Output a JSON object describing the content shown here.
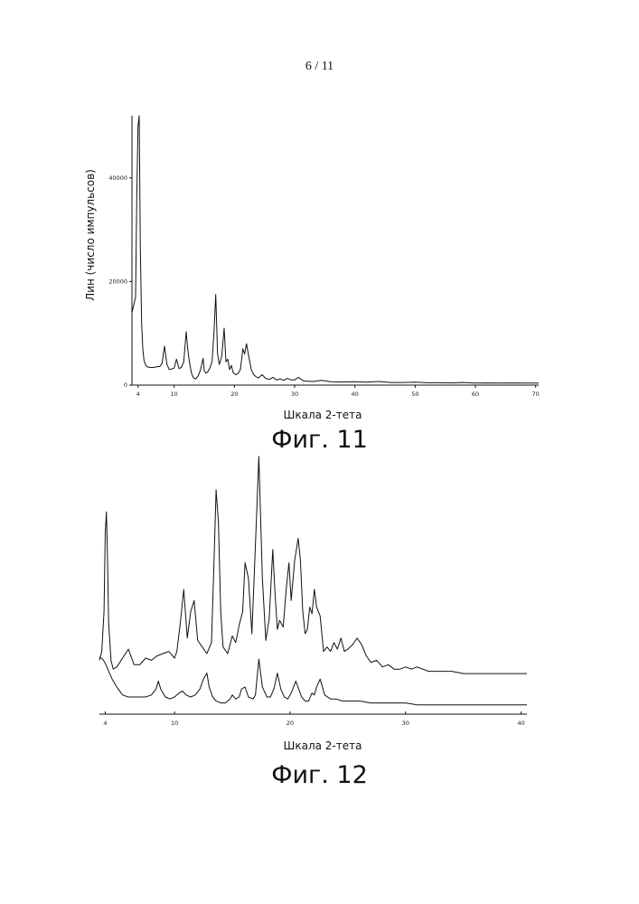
{
  "page_number": "6  / 11",
  "chart_data": [
    {
      "type": "line",
      "title": "",
      "caption": "Фиг. 11",
      "xlabel": "Шкала 2-тета",
      "ylabel": "Лин (число импульсов)",
      "xlim": [
        3,
        70.5
      ],
      "ylim": [
        0,
        52000
      ],
      "xticks": [
        4,
        10,
        20,
        30,
        40,
        50,
        60,
        70
      ],
      "yticks": [
        0,
        20000,
        40000
      ],
      "grid": false,
      "series": [
        {
          "x": [
            3.0,
            3.6,
            3.8,
            4.0,
            4.2,
            4.4,
            4.6,
            4.8,
            5.0,
            5.3,
            5.6,
            6.0,
            6.5,
            7.0,
            7.6,
            8.0,
            8.4,
            8.8,
            9.2,
            9.6,
            10.0,
            10.4,
            10.8,
            11.2,
            11.6,
            12.0,
            12.3,
            12.6,
            12.9,
            13.2,
            13.6,
            14.0,
            14.4,
            14.8,
            15.0,
            15.3,
            15.6,
            16.0,
            16.3,
            16.6,
            16.9,
            17.2,
            17.5,
            17.9,
            18.3,
            18.6,
            18.9,
            19.2,
            19.5,
            19.8,
            20.2,
            20.6,
            21.0,
            21.4,
            21.7,
            22.0,
            22.4,
            22.8,
            23.2,
            23.6,
            24.0,
            24.6,
            25.2,
            25.8,
            26.4,
            27.0,
            27.6,
            28.2,
            28.8,
            29.4,
            30.0,
            30.6,
            31.5,
            33.0,
            34.5,
            36.0,
            38.0,
            40.0,
            42.0,
            44.0,
            46.0,
            48.0,
            50.0,
            52.0,
            54.0,
            56.0,
            58.0,
            60.0,
            62.0,
            64.0,
            66.0,
            68.0,
            70.0,
            70.5
          ],
          "y": [
            14000,
            17000,
            36000,
            50000,
            52000,
            26000,
            12000,
            7000,
            4800,
            3800,
            3500,
            3400,
            3400,
            3500,
            3600,
            4200,
            7500,
            4000,
            3000,
            3100,
            3300,
            5000,
            3200,
            3400,
            4500,
            10300,
            6500,
            4000,
            2200,
            1400,
            1200,
            1800,
            3000,
            5200,
            2800,
            2300,
            2600,
            3500,
            4600,
            10000,
            17500,
            6000,
            4000,
            5500,
            11000,
            4500,
            5000,
            3000,
            3800,
            2400,
            2000,
            2200,
            3000,
            7000,
            6000,
            8000,
            5500,
            3000,
            2000,
            1600,
            1400,
            2000,
            1300,
            1100,
            1500,
            1000,
            1200,
            900,
            1300,
            1000,
            1000,
            1500,
            800,
            700,
            900,
            650,
            600,
            650,
            550,
            700,
            500,
            500,
            550,
            450,
            450,
            420,
            500,
            400,
            420,
            380,
            420,
            400,
            380,
            380
          ]
        }
      ]
    },
    {
      "type": "line",
      "title": "",
      "caption": "Фиг. 12",
      "xlabel": "Шкала 2-тета",
      "ylabel": "",
      "xlim": [
        3.5,
        40.5
      ],
      "xticks": [
        4,
        10,
        20,
        30,
        40
      ],
      "yaxis": "none",
      "grid": false,
      "series": [
        {
          "x": [
            3.5,
            3.7,
            3.9,
            4.0,
            4.1,
            4.2,
            4.3,
            4.5,
            4.7,
            5.0,
            5.5,
            6.0,
            6.5,
            7.0,
            7.5,
            8.0,
            8.5,
            9.0,
            9.5,
            10.0,
            10.2,
            10.5,
            10.8,
            11.1,
            11.4,
            11.7,
            12.0,
            12.4,
            12.8,
            13.2,
            13.4,
            13.6,
            13.8,
            14.0,
            14.2,
            14.6,
            15.0,
            15.3,
            15.6,
            15.9,
            16.1,
            16.4,
            16.7,
            17.0,
            17.3,
            17.6,
            17.9,
            18.2,
            18.5,
            18.7,
            18.9,
            19.1,
            19.4,
            19.7,
            19.9,
            20.1,
            20.4,
            20.7,
            20.9,
            21.1,
            21.3,
            21.5,
            21.7,
            21.9,
            22.1,
            22.3,
            22.6,
            22.9,
            23.2,
            23.5,
            23.8,
            24.1,
            24.4,
            24.7,
            25.0,
            25.4,
            25.8,
            26.2,
            26.6,
            27.0,
            27.5,
            28.0,
            28.5,
            29.0,
            29.5,
            30.0,
            30.5,
            31.0,
            32.0,
            33.0,
            34.0,
            35.0,
            36.0,
            37.0,
            38.0,
            39.0,
            40.0,
            40.5
          ],
          "y": [
            8,
            12,
            30,
            65,
            75,
            55,
            25,
            8,
            4,
            5,
            9,
            13,
            6,
            6,
            9,
            8,
            10,
            11,
            12,
            9,
            12,
            25,
            40,
            18,
            30,
            35,
            17,
            14,
            11,
            16,
            50,
            85,
            70,
            30,
            14,
            11,
            19,
            16,
            24,
            30,
            52,
            45,
            20,
            60,
            100,
            45,
            17,
            27,
            58,
            38,
            22,
            26,
            23,
            42,
            52,
            35,
            53,
            63,
            53,
            30,
            20,
            22,
            32,
            29,
            40,
            32,
            28,
            12,
            14,
            12,
            16,
            13,
            18,
            12,
            13,
            15,
            18,
            15,
            10,
            7,
            8,
            5,
            6,
            4,
            4,
            5,
            4,
            5,
            3,
            3,
            3,
            2,
            2,
            2,
            2,
            2,
            2,
            2
          ]
        },
        {
          "x": [
            3.5,
            3.8,
            4.0,
            4.3,
            4.6,
            5.0,
            5.5,
            6.0,
            6.5,
            7.0,
            7.5,
            8.0,
            8.4,
            8.6,
            8.8,
            9.2,
            9.6,
            10.0,
            10.4,
            10.7,
            11.0,
            11.4,
            11.8,
            12.2,
            12.5,
            12.8,
            13.0,
            13.3,
            13.6,
            14.0,
            14.4,
            14.8,
            15.0,
            15.3,
            15.6,
            15.8,
            16.1,
            16.4,
            16.8,
            17.0,
            17.3,
            17.6,
            18.0,
            18.3,
            18.6,
            18.9,
            19.2,
            19.5,
            19.8,
            20.1,
            20.5,
            21.0,
            21.3,
            21.6,
            21.9,
            22.1,
            22.3,
            22.6,
            23.0,
            23.5,
            24.0,
            24.5,
            25.0,
            25.5,
            26.0,
            27.0,
            28.0,
            29.0,
            30.0,
            31.0,
            32.0,
            33.0,
            34.0,
            35.0,
            36.0,
            37.0,
            38.0,
            39.0,
            40.0,
            40.5
          ],
          "y": [
            25,
            24,
            22,
            18,
            14,
            10,
            6,
            5,
            5,
            5,
            5,
            6,
            9,
            13,
            9,
            5,
            4,
            5,
            7,
            8,
            6,
            5,
            6,
            9,
            14,
            17,
            10,
            5,
            3,
            2,
            2,
            4,
            6,
            4,
            5,
            9,
            10,
            5,
            4,
            6,
            24,
            10,
            5,
            5,
            9,
            17,
            9,
            5,
            4,
            7,
            13,
            5,
            3,
            3,
            7,
            6,
            10,
            14,
            6,
            4,
            4,
            3,
            3,
            3,
            3,
            2,
            2,
            2,
            2,
            1,
            1,
            1,
            1,
            1,
            1,
            1,
            1,
            1,
            1,
            1
          ]
        }
      ]
    }
  ]
}
